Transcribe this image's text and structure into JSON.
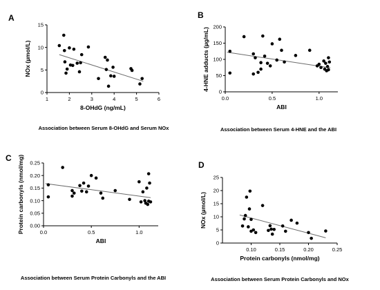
{
  "chart_data": [
    {
      "panel": "A",
      "type": "scatter",
      "caption": "Association between Serum 8-OHdG and Serum NOx",
      "xlabel": "8-OHdG (ng/mL)",
      "ylabel": "NOx (µmol/L)",
      "xlim": [
        1,
        6
      ],
      "ylim": [
        0,
        15
      ],
      "xticks": [
        1,
        2,
        3,
        4,
        5,
        6
      ],
      "yticks": [
        0,
        5,
        10,
        15
      ],
      "points": [
        {
          "x": 1.55,
          "y": 10.4
        },
        {
          "x": 1.75,
          "y": 12.7
        },
        {
          "x": 1.78,
          "y": 9.3
        },
        {
          "x": 1.8,
          "y": 6.8
        },
        {
          "x": 1.85,
          "y": 4.3
        },
        {
          "x": 1.9,
          "y": 5.2
        },
        {
          "x": 2.0,
          "y": 9.9
        },
        {
          "x": 2.05,
          "y": 6.1
        },
        {
          "x": 2.15,
          "y": 6.0
        },
        {
          "x": 2.2,
          "y": 9.6
        },
        {
          "x": 2.35,
          "y": 6.5
        },
        {
          "x": 2.45,
          "y": 4.6
        },
        {
          "x": 2.5,
          "y": 6.6
        },
        {
          "x": 2.55,
          "y": 8.4
        },
        {
          "x": 2.85,
          "y": 10.1
        },
        {
          "x": 3.3,
          "y": 3.1
        },
        {
          "x": 3.6,
          "y": 7.8
        },
        {
          "x": 3.65,
          "y": 5.1
        },
        {
          "x": 3.7,
          "y": 7.2
        },
        {
          "x": 3.75,
          "y": 1.4
        },
        {
          "x": 3.85,
          "y": 3.7
        },
        {
          "x": 3.95,
          "y": 5.6
        },
        {
          "x": 4.0,
          "y": 3.6
        },
        {
          "x": 4.75,
          "y": 5.3
        },
        {
          "x": 4.8,
          "y": 4.9
        },
        {
          "x": 5.15,
          "y": 1.9
        },
        {
          "x": 5.25,
          "y": 3.1
        }
      ],
      "trendline": [
        {
          "x": 1.55,
          "y": 8.4
        },
        {
          "x": 5.3,
          "y": 2.5
        }
      ]
    },
    {
      "panel": "B",
      "type": "scatter",
      "caption": "Association between Serum 4-HNE and the ABI",
      "xlabel": "ABI",
      "ylabel": "4-HNE adducts (µg/mL)",
      "xlim": [
        0,
        1.2
      ],
      "ylim": [
        0,
        200
      ],
      "xticks": [
        0.0,
        0.5,
        1.0
      ],
      "xtick_labels": [
        "0.0",
        "0.5",
        "1.0"
      ],
      "yticks": [
        0,
        50,
        100,
        150,
        200
      ],
      "points": [
        {
          "x": 0.05,
          "y": 125
        },
        {
          "x": 0.05,
          "y": 58
        },
        {
          "x": 0.2,
          "y": 170
        },
        {
          "x": 0.3,
          "y": 117
        },
        {
          "x": 0.3,
          "y": 55
        },
        {
          "x": 0.32,
          "y": 105
        },
        {
          "x": 0.35,
          "y": 60
        },
        {
          "x": 0.38,
          "y": 90
        },
        {
          "x": 0.38,
          "y": 70
        },
        {
          "x": 0.4,
          "y": 172
        },
        {
          "x": 0.42,
          "y": 110
        },
        {
          "x": 0.45,
          "y": 88
        },
        {
          "x": 0.48,
          "y": 80
        },
        {
          "x": 0.5,
          "y": 148
        },
        {
          "x": 0.55,
          "y": 98
        },
        {
          "x": 0.58,
          "y": 162
        },
        {
          "x": 0.6,
          "y": 128
        },
        {
          "x": 0.63,
          "y": 92
        },
        {
          "x": 0.75,
          "y": 112
        },
        {
          "x": 0.9,
          "y": 128
        },
        {
          "x": 0.98,
          "y": 80
        },
        {
          "x": 1.0,
          "y": 85
        },
        {
          "x": 1.02,
          "y": 75
        },
        {
          "x": 1.05,
          "y": 95
        },
        {
          "x": 1.06,
          "y": 70
        },
        {
          "x": 1.07,
          "y": 88
        },
        {
          "x": 1.08,
          "y": 65
        },
        {
          "x": 1.09,
          "y": 78
        },
        {
          "x": 1.1,
          "y": 105
        },
        {
          "x": 1.1,
          "y": 68
        },
        {
          "x": 1.11,
          "y": 92
        }
      ],
      "trendline": [
        {
          "x": 0.02,
          "y": 122
        },
        {
          "x": 1.12,
          "y": 74
        }
      ]
    },
    {
      "panel": "C",
      "type": "scatter",
      "caption": "Association between Serum Protein Carbonyls and the ABI",
      "xlabel": "ABI",
      "ylabel": "Protein carbonyls (nmol/mg)",
      "xlim": [
        0,
        1.2
      ],
      "ylim": [
        0,
        0.25
      ],
      "xticks": [
        0.0,
        0.5,
        1.0
      ],
      "xtick_labels": [
        "0.0",
        "0.5",
        "1.0"
      ],
      "yticks": [
        0.0,
        0.05,
        0.1,
        0.15,
        0.2,
        0.25
      ],
      "ytick_labels": [
        "0.00",
        "0.05",
        "0.10",
        "0.15",
        "0.20",
        "0.25"
      ],
      "points": [
        {
          "x": 0.05,
          "y": 0.163
        },
        {
          "x": 0.05,
          "y": 0.115
        },
        {
          "x": 0.2,
          "y": 0.232
        },
        {
          "x": 0.3,
          "y": 0.14
        },
        {
          "x": 0.3,
          "y": 0.118
        },
        {
          "x": 0.32,
          "y": 0.13
        },
        {
          "x": 0.38,
          "y": 0.16
        },
        {
          "x": 0.4,
          "y": 0.138
        },
        {
          "x": 0.42,
          "y": 0.17
        },
        {
          "x": 0.45,
          "y": 0.135
        },
        {
          "x": 0.47,
          "y": 0.158
        },
        {
          "x": 0.5,
          "y": 0.2
        },
        {
          "x": 0.55,
          "y": 0.19
        },
        {
          "x": 0.6,
          "y": 0.13
        },
        {
          "x": 0.62,
          "y": 0.11
        },
        {
          "x": 0.75,
          "y": 0.14
        },
        {
          "x": 0.9,
          "y": 0.105
        },
        {
          "x": 1.0,
          "y": 0.175
        },
        {
          "x": 1.02,
          "y": 0.095
        },
        {
          "x": 1.04,
          "y": 0.135
        },
        {
          "x": 1.06,
          "y": 0.1
        },
        {
          "x": 1.07,
          "y": 0.09
        },
        {
          "x": 1.08,
          "y": 0.15
        },
        {
          "x": 1.09,
          "y": 0.085
        },
        {
          "x": 1.1,
          "y": 0.207
        },
        {
          "x": 1.1,
          "y": 0.098
        },
        {
          "x": 1.11,
          "y": 0.17
        },
        {
          "x": 1.12,
          "y": 0.095
        }
      ],
      "trendline": [
        {
          "x": 0.02,
          "y": 0.168
        },
        {
          "x": 1.12,
          "y": 0.112
        }
      ]
    },
    {
      "panel": "D",
      "type": "scatter",
      "caption": "Association between Serum Protein Carbonyls and NOx",
      "xlabel": "Protein carbonyls (nmol/mg)",
      "ylabel": "NOx (µmol/L)",
      "xlim": [
        0.05,
        0.25
      ],
      "ylim": [
        0,
        25
      ],
      "xticks": [
        0.1,
        0.15,
        0.2,
        0.25
      ],
      "xtick_labels": [
        "0.10",
        "0.15",
        "0.20",
        "0.25"
      ],
      "yticks": [
        0,
        5,
        10,
        15,
        20,
        25
      ],
      "points": [
        {
          "x": 0.085,
          "y": 6.5
        },
        {
          "x": 0.088,
          "y": 9.2
        },
        {
          "x": 0.09,
          "y": 10.5
        },
        {
          "x": 0.092,
          "y": 17.5
        },
        {
          "x": 0.095,
          "y": 6.2
        },
        {
          "x": 0.097,
          "y": 13.0
        },
        {
          "x": 0.098,
          "y": 19.8
        },
        {
          "x": 0.1,
          "y": 4.5
        },
        {
          "x": 0.1,
          "y": 9.0
        },
        {
          "x": 0.104,
          "y": 5.0
        },
        {
          "x": 0.108,
          "y": 4.0
        },
        {
          "x": 0.12,
          "y": 14.3
        },
        {
          "x": 0.13,
          "y": 4.8
        },
        {
          "x": 0.133,
          "y": 6.6
        },
        {
          "x": 0.135,
          "y": 5.3
        },
        {
          "x": 0.137,
          "y": 3.4
        },
        {
          "x": 0.14,
          "y": 5.2
        },
        {
          "x": 0.155,
          "y": 6.5
        },
        {
          "x": 0.16,
          "y": 4.5
        },
        {
          "x": 0.17,
          "y": 8.7
        },
        {
          "x": 0.18,
          "y": 7.6
        },
        {
          "x": 0.2,
          "y": 4.0
        },
        {
          "x": 0.205,
          "y": 1.8
        },
        {
          "x": 0.23,
          "y": 4.6
        }
      ],
      "trendline": [
        {
          "x": 0.08,
          "y": 10.7
        },
        {
          "x": 0.23,
          "y": 2.0
        }
      ]
    }
  ]
}
